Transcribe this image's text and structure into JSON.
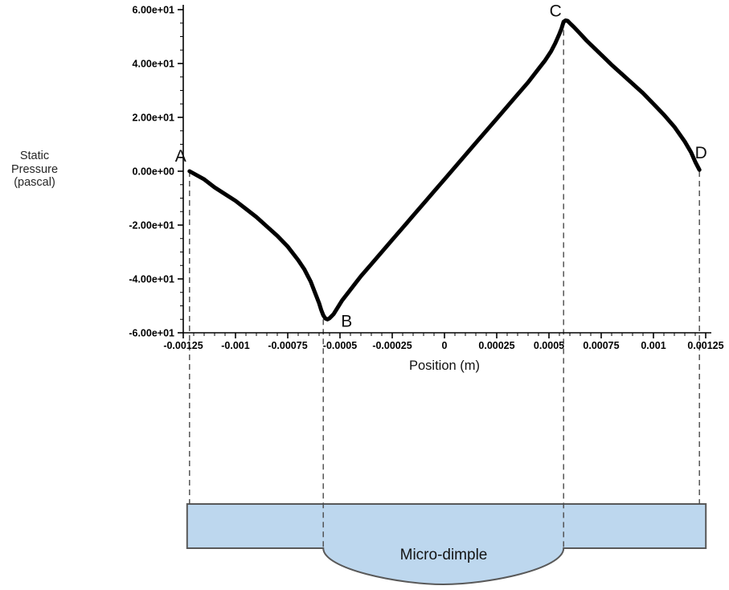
{
  "figure": {
    "background": "#ffffff"
  },
  "chart_data": {
    "type": "line",
    "title": "",
    "xlabel": "Position (m)",
    "ylabel": "Static Pressure (pascal)",
    "ylabel_lines": [
      "Static",
      "Pressure",
      "(pascal)"
    ],
    "xlim": [
      -0.00125,
      0.00125
    ],
    "ylim": [
      -60,
      60
    ],
    "x_ticks": [
      -0.00125,
      -0.001,
      -0.00075,
      -0.0005,
      -0.00025,
      0,
      0.00025,
      0.0005,
      0.00075,
      0.001,
      0.00125
    ],
    "x_tick_labels": [
      "-0.00125",
      "-0.001",
      "-0.00075",
      "-0.0005",
      "-0.00025",
      "0",
      "0.00025",
      "0.0005",
      "0.00075",
      "0.001",
      "0.00125"
    ],
    "x_minor_step": 5e-05,
    "y_ticks": [
      60,
      40,
      20,
      0,
      -20,
      -40,
      -60
    ],
    "y_tick_labels": [
      "6.00e+01",
      "4.00e+01",
      "2.00e+01",
      "0.00e+00",
      "-2.00e+01",
      "-4.00e+01",
      "-6.00e+01"
    ],
    "y_minor_step": 5,
    "grid": false,
    "legend": false,
    "series": [
      {
        "name": "static-pressure",
        "color": "#000000",
        "x": [
          -0.00122,
          -0.00115,
          -0.0011,
          -0.00105,
          -0.001,
          -0.00095,
          -0.0009,
          -0.00085,
          -0.0008,
          -0.00075,
          -0.0007,
          -0.00067,
          -0.00064,
          -0.00062,
          -0.0006,
          -0.00059,
          -0.00058,
          -0.00057,
          -0.00056,
          -0.00055,
          -0.00053,
          -0.00051,
          -0.00049,
          -0.00046,
          -0.00043,
          -0.0004,
          -0.00035,
          -0.0003,
          -0.00025,
          -0.0002,
          -0.00015,
          -0.0001,
          -5e-05,
          0,
          5e-05,
          0.0001,
          0.00015,
          0.0002,
          0.00025,
          0.0003,
          0.00035,
          0.0004,
          0.00045,
          0.00048,
          0.00051,
          0.00053,
          0.00055,
          0.00056,
          0.00057,
          0.00058,
          0.00059,
          0.0006,
          0.00062,
          0.00065,
          0.00068,
          0.00072,
          0.00076,
          0.0008,
          0.00085,
          0.0009,
          0.00095,
          0.001,
          0.00105,
          0.0011,
          0.00115,
          0.00118,
          0.0012,
          0.00122
        ],
        "y": [
          0,
          -3,
          -6,
          -8.5,
          -11,
          -14,
          -17,
          -20.5,
          -24,
          -28,
          -33,
          -36.5,
          -41,
          -45,
          -49,
          -51.5,
          -53.5,
          -54.7,
          -55,
          -54.6,
          -53,
          -50.5,
          -48,
          -45,
          -42,
          -39,
          -34.5,
          -30,
          -25.5,
          -21,
          -16.5,
          -12,
          -7.5,
          -3,
          1.5,
          6,
          10.5,
          15,
          19.5,
          24,
          28.5,
          33,
          38,
          41,
          44.5,
          47.5,
          51,
          53,
          55.5,
          56,
          55.8,
          55,
          53.5,
          51,
          48.5,
          45.5,
          42.5,
          39.5,
          36,
          32.5,
          29,
          25,
          21,
          16.5,
          11,
          7,
          3.5,
          0.5
        ]
      }
    ],
    "annotations": [
      {
        "label": "A",
        "x": -0.00122,
        "y": 0
      },
      {
        "label": "B",
        "x": -0.00058,
        "y": -55
      },
      {
        "label": "C",
        "x": 0.00057,
        "y": 56
      },
      {
        "label": "D",
        "x": 0.00122,
        "y": 0
      }
    ],
    "dashed_lines_x": [
      -0.00122,
      -0.00058,
      0.00057,
      0.00122
    ]
  },
  "schematic": {
    "label": "Micro-dimple",
    "fill": "#bdd7ee",
    "stroke": "#595959"
  }
}
